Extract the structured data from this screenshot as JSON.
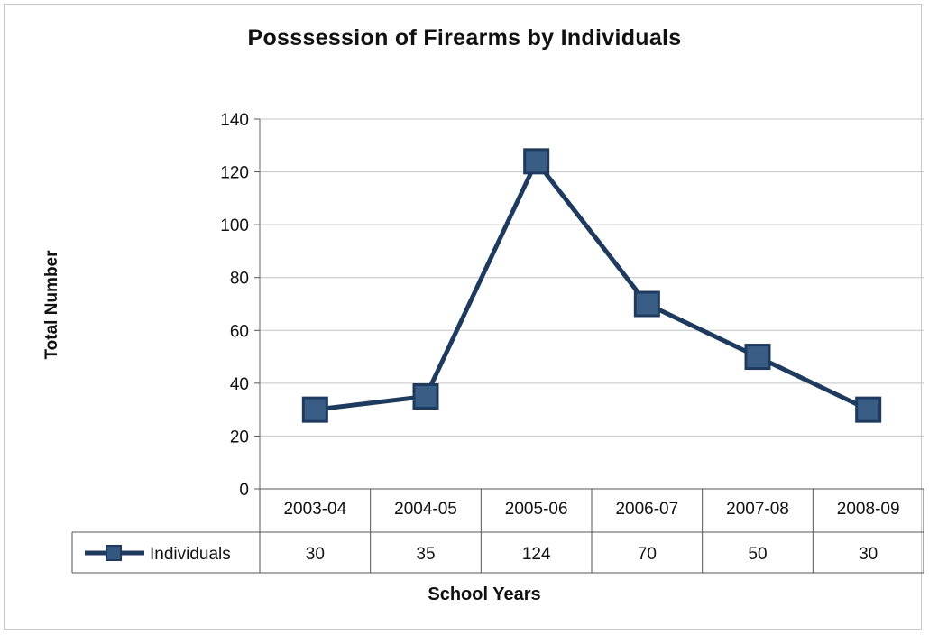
{
  "chart_data": {
    "type": "line",
    "title": "Posssession of Firearms by Individuals",
    "xlabel": "School Years",
    "ylabel": "Total Number",
    "categories": [
      "2003-04",
      "2004-05",
      "2005-06",
      "2006-07",
      "2007-08",
      "2008-09"
    ],
    "series": [
      {
        "name": "Individuals",
        "values": [
          30,
          35,
          124,
          70,
          50,
          30
        ],
        "color": "#1f3a5f",
        "marker": "square"
      }
    ],
    "ylim": [
      0,
      140
    ],
    "yticks": [
      0,
      20,
      40,
      60,
      80,
      100,
      120,
      140
    ],
    "grid": true,
    "legend": "data-table-left",
    "data_table": true
  }
}
